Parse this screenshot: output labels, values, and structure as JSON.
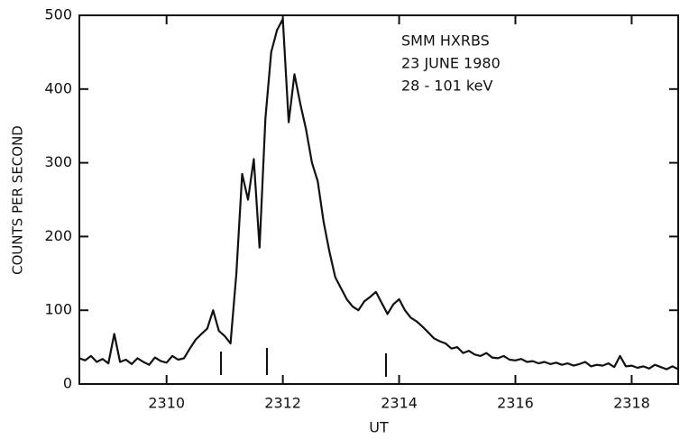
{
  "chart_data": {
    "type": "line",
    "x_label": "UT",
    "y_label": "COUNTS PER SECOND",
    "annotations": [
      "SMM HXRBS",
      "23 JUNE 1980",
      "28 - 101 keV"
    ],
    "color": "#111111",
    "xlim": [
      2308.5,
      2318.8
    ],
    "xticks": [
      2310,
      2312,
      2314,
      2316,
      2318
    ],
    "ylim": [
      0,
      500
    ],
    "yticks": [
      0,
      100,
      200,
      300,
      400,
      500
    ],
    "x": [
      2308.5,
      2308.6,
      2308.7,
      2308.8,
      2308.9,
      2309.0,
      2309.1,
      2309.2,
      2309.3,
      2309.4,
      2309.5,
      2309.6,
      2309.7,
      2309.8,
      2309.9,
      2310.0,
      2310.1,
      2310.2,
      2310.3,
      2310.4,
      2310.5,
      2310.6,
      2310.7,
      2310.8,
      2310.9,
      2311.0,
      2311.1,
      2311.2,
      2311.3,
      2311.4,
      2311.5,
      2311.6,
      2311.7,
      2311.8,
      2311.9,
      2312.0,
      2312.1,
      2312.2,
      2312.3,
      2312.4,
      2312.5,
      2312.6,
      2312.7,
      2312.8,
      2312.9,
      2313.0,
      2313.1,
      2313.2,
      2313.3,
      2313.4,
      2313.5,
      2313.6,
      2313.7,
      2313.8,
      2313.9,
      2314.0,
      2314.1,
      2314.2,
      2314.3,
      2314.4,
      2314.5,
      2314.6,
      2314.7,
      2314.8,
      2314.9,
      2315.0,
      2315.1,
      2315.2,
      2315.3,
      2315.4,
      2315.5,
      2315.6,
      2315.7,
      2315.8,
      2315.9,
      2316.0,
      2316.1,
      2316.2,
      2316.3,
      2316.4,
      2316.5,
      2316.6,
      2316.7,
      2316.8,
      2316.9,
      2317.0,
      2317.1,
      2317.2,
      2317.3,
      2317.4,
      2317.5,
      2317.6,
      2317.7,
      2317.8,
      2317.9,
      2318.0,
      2318.1,
      2318.2,
      2318.3,
      2318.4,
      2318.5,
      2318.6,
      2318.7,
      2318.8
    ],
    "values": [
      35,
      32,
      38,
      30,
      34,
      28,
      68,
      30,
      33,
      27,
      35,
      30,
      26,
      36,
      31,
      29,
      38,
      33,
      35,
      48,
      60,
      68,
      75,
      100,
      72,
      65,
      55,
      150,
      285,
      250,
      305,
      185,
      360,
      450,
      480,
      495,
      355,
      420,
      380,
      345,
      300,
      275,
      220,
      180,
      145,
      130,
      115,
      105,
      100,
      112,
      118,
      125,
      110,
      95,
      108,
      115,
      100,
      90,
      85,
      78,
      70,
      62,
      58,
      55,
      48,
      50,
      42,
      45,
      40,
      38,
      42,
      36,
      35,
      38,
      33,
      32,
      34,
      30,
      31,
      28,
      30,
      27,
      29,
      26,
      28,
      25,
      27,
      30,
      24,
      26,
      25,
      28,
      23,
      38,
      24,
      25,
      22,
      24,
      21,
      26,
      23,
      20,
      24,
      20
    ]
  }
}
